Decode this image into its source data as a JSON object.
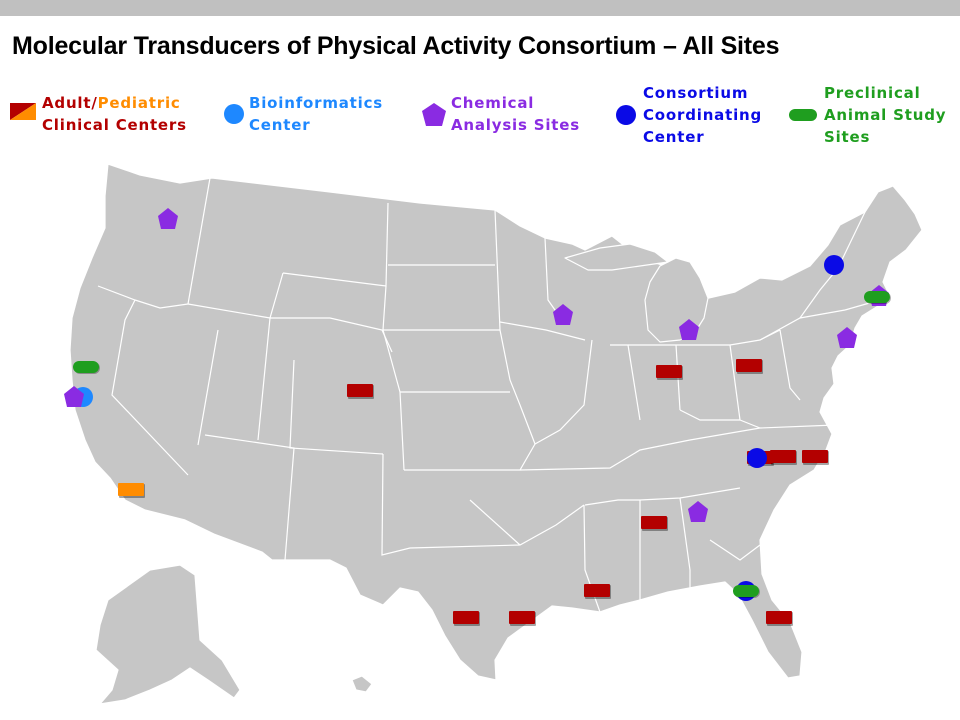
{
  "title": "Molecular Transducers of Physical Activity Consortium – All Sites",
  "colors": {
    "adult_clinical": "#b30000",
    "pediatric_clinical": "#ff8c00",
    "bioinformatics": "#1e88ff",
    "chemical": "#8a2be2",
    "coordinating": "#0a0ae6",
    "preclinical": "#1f9e1f",
    "map_fill": "#c6c6c6",
    "border": "#ffffff"
  },
  "legend": {
    "clinical": {
      "word_adult": "Adult/",
      "word_pediatric": "Pediatric",
      "line2": "Clinical Centers",
      "icon": "split-rectangle-icon"
    },
    "bioinformatics": {
      "line1": "Bioinformatics",
      "line2": "Center",
      "icon": "light-blue-circle-icon"
    },
    "chemical": {
      "line1": "Chemical",
      "line2": "Analysis Sites",
      "icon": "purple-pentagon-icon"
    },
    "coordinating": {
      "line1": "Consortium",
      "line2": "Coordinating",
      "line3": "Center",
      "icon": "dark-blue-circle-icon"
    },
    "preclinical": {
      "line1": "Preclinical",
      "line2": "Animal Study",
      "line3": "Sites",
      "icon": "green-pill-icon"
    }
  },
  "sites": [
    {
      "type": "chemical",
      "region": "Washington"
    },
    {
      "type": "coordinating",
      "region": "Vermont"
    },
    {
      "type": "chemical",
      "region": "Wisconsin"
    },
    {
      "type": "chemical",
      "region": "Michigan"
    },
    {
      "type": "chemical",
      "region": "Rhode Island"
    },
    {
      "type": "preclinical",
      "region": "Connecticut"
    },
    {
      "type": "chemical",
      "region": "New Jersey"
    },
    {
      "type": "preclinical",
      "region": "Northern California"
    },
    {
      "type": "bioinformatics",
      "region": "Northern California"
    },
    {
      "type": "chemical",
      "region": "Northern California"
    },
    {
      "type": "adult_clinical",
      "region": "Colorado"
    },
    {
      "type": "adult_clinical",
      "region": "Indiana"
    },
    {
      "type": "adult_clinical",
      "region": "Ohio"
    },
    {
      "type": "adult_clinical",
      "region": "North Carolina"
    },
    {
      "type": "coordinating",
      "region": "North Carolina"
    },
    {
      "type": "adult_clinical",
      "region": "North Carolina"
    },
    {
      "type": "adult_clinical",
      "region": "North Carolina"
    },
    {
      "type": "pediatric_clinical",
      "region": "Southern California"
    },
    {
      "type": "adult_clinical",
      "region": "Alabama"
    },
    {
      "type": "chemical",
      "region": "Georgia"
    },
    {
      "type": "adult_clinical",
      "region": "Louisiana"
    },
    {
      "type": "coordinating",
      "region": "Florida"
    },
    {
      "type": "preclinical",
      "region": "Florida"
    },
    {
      "type": "adult_clinical",
      "region": "Florida"
    },
    {
      "type": "adult_clinical",
      "region": "Texas"
    },
    {
      "type": "adult_clinical",
      "region": "Texas"
    }
  ]
}
